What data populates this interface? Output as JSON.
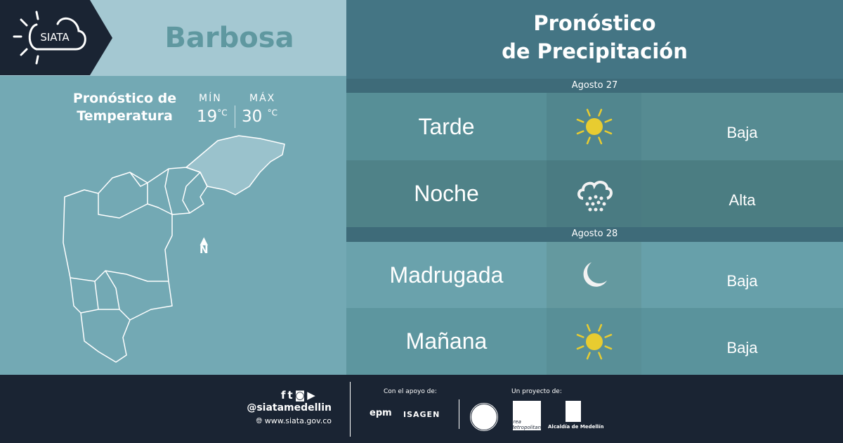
{
  "brand": {
    "logo_text": "SIATA"
  },
  "city": "Barbosa",
  "temperature": {
    "title_line1": "Pronóstico de",
    "title_line2": "Temperatura",
    "min_label": "MÍN",
    "max_label": "MÁX",
    "min_value": "19",
    "max_value": "30",
    "unit": "°C"
  },
  "map": {
    "north_label": "N"
  },
  "precipitation": {
    "title_line1": "Pronóstico",
    "title_line2": "de Precipitación",
    "days": [
      {
        "date": "Agosto 27",
        "periods": [
          {
            "name": "Tarde",
            "icon": "sun-icon",
            "level": "Baja"
          },
          {
            "name": "Noche",
            "icon": "rain-cloud-icon",
            "level": "Alta"
          }
        ]
      },
      {
        "date": "Agosto 28",
        "periods": [
          {
            "name": "Madrugada",
            "icon": "moon-icon",
            "level": "Baja"
          },
          {
            "name": "Mañana",
            "icon": "sun-icon",
            "level": "Baja"
          }
        ]
      }
    ]
  },
  "footer": {
    "handle": "@siatamedellin",
    "website": "www.siata.gov.co",
    "support_label": "Con el apoyo de:",
    "project_label": "Un proyecto de:",
    "sponsors": [
      "epm",
      "ISAGEN"
    ],
    "partners": [
      "Área Metropolitana",
      "Alcaldía de Medellín"
    ]
  },
  "colors": {
    "dark": "#1a2433",
    "sun": "#e8cc30",
    "header": "#447584"
  }
}
